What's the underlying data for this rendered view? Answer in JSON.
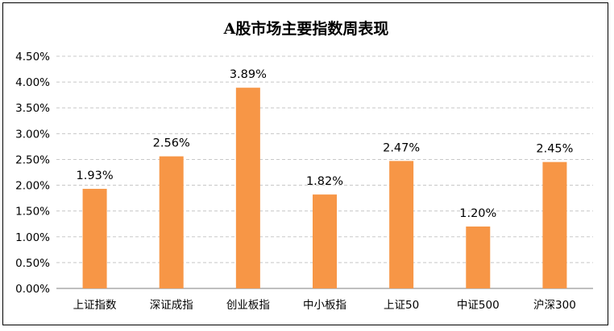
{
  "chart_data": {
    "type": "bar",
    "title": "A股市场主要指数周表现",
    "categories": [
      "上证指数",
      "深证成指",
      "创业板指",
      "中小板指",
      "上证50",
      "中证500",
      "沪深300"
    ],
    "values": [
      1.93,
      2.56,
      3.89,
      1.82,
      2.47,
      1.2,
      2.45
    ],
    "data_labels": [
      "1.93%",
      "2.56%",
      "3.89%",
      "1.82%",
      "2.47%",
      "1.20%",
      "2.45%"
    ],
    "yticks": [
      "0.00%",
      "0.50%",
      "1.00%",
      "1.50%",
      "2.00%",
      "2.50%",
      "3.00%",
      "3.50%",
      "4.00%",
      "4.50%"
    ],
    "ylim": [
      0,
      4.5
    ],
    "ystep": 0.5,
    "grid": true,
    "legend": "none",
    "bar_color": "#F79646",
    "grid_color": "#C8C8C8"
  }
}
